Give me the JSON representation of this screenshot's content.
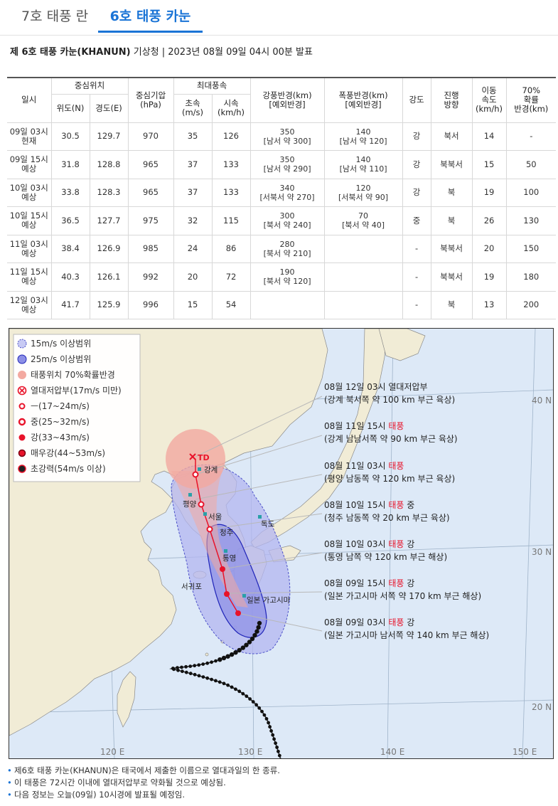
{
  "tabs": [
    {
      "label": "7호 태풍 란"
    },
    {
      "label": "6호 태풍 카눈"
    }
  ],
  "heading": {
    "title": "제 6호 태풍 카눈(KHANUN)",
    "source": " 기상청 | 2023년 08월 09일 04시 00분 발표"
  },
  "table": {
    "h": {
      "time": "일시",
      "center": "중심위치",
      "lat": "위도(N)",
      "lon": "경도(E)",
      "pressure": "중심기압",
      "pressure_unit": "(hPa)",
      "wind": "최대풍속",
      "ms": "초속",
      "ms_unit": "(m/s)",
      "kmh": "시속",
      "kmh_unit": "(km/h)",
      "strong": "강풍반경(km)",
      "strong2": "[예외반경]",
      "storm": "폭풍반경(km)",
      "storm2": "[예외반경]",
      "intensity": "강도",
      "dir1": "진행",
      "dir2": "방향",
      "spd1": "이동",
      "spd2": "속도",
      "spd3": "(km/h)",
      "p1": "70%",
      "p2": "확률",
      "p3": "반경(km)"
    },
    "rows": [
      {
        "t1": "09일 03시",
        "t2": "현재",
        "lat": "30.5",
        "lon": "129.7",
        "hpa": "970",
        "ms": "35",
        "kmh": "126",
        "s1": "350",
        "s2": "[남서 약 300]",
        "st1": "140",
        "st2": "[남서 약 120]",
        "int": "강",
        "dir": "북서",
        "spd": "14",
        "prob": "-"
      },
      {
        "t1": "09일 15시",
        "t2": "예상",
        "lat": "31.8",
        "lon": "128.8",
        "hpa": "965",
        "ms": "37",
        "kmh": "133",
        "s1": "350",
        "s2": "[남서 약 290]",
        "st1": "140",
        "st2": "[남서 약 110]",
        "int": "강",
        "dir": "북북서",
        "spd": "15",
        "prob": "50"
      },
      {
        "t1": "10일 03시",
        "t2": "예상",
        "lat": "33.8",
        "lon": "128.3",
        "hpa": "965",
        "ms": "37",
        "kmh": "133",
        "s1": "340",
        "s2": "[서북서 약 270]",
        "st1": "120",
        "st2": "[서북서 약 90]",
        "int": "강",
        "dir": "북",
        "spd": "19",
        "prob": "100"
      },
      {
        "t1": "10일 15시",
        "t2": "예상",
        "lat": "36.5",
        "lon": "127.7",
        "hpa": "975",
        "ms": "32",
        "kmh": "115",
        "s1": "300",
        "s2": "[북서 약 240]",
        "st1": "70",
        "st2": "[북서 약 40]",
        "int": "중",
        "dir": "북",
        "spd": "26",
        "prob": "130"
      },
      {
        "t1": "11일 03시",
        "t2": "예상",
        "lat": "38.4",
        "lon": "126.9",
        "hpa": "985",
        "ms": "24",
        "kmh": "86",
        "s1": "280",
        "s2": "[북서 약 210]",
        "st1": "",
        "st2": "",
        "int": "-",
        "dir": "북북서",
        "spd": "20",
        "prob": "150"
      },
      {
        "t1": "11일 15시",
        "t2": "예상",
        "lat": "40.3",
        "lon": "126.1",
        "hpa": "992",
        "ms": "20",
        "kmh": "72",
        "s1": "190",
        "s2": "[북서 약 120]",
        "st1": "",
        "st2": "",
        "int": "-",
        "dir": "북북서",
        "spd": "19",
        "prob": "180"
      },
      {
        "t1": "12일 03시",
        "t2": "예상",
        "lat": "41.7",
        "lon": "125.9",
        "hpa": "996",
        "ms": "15",
        "kmh": "54",
        "s1": "",
        "s2": "",
        "st1": "",
        "st2": "",
        "int": "-",
        "dir": "북",
        "spd": "13",
        "prob": "200"
      }
    ]
  },
  "map": {
    "legend": [
      "15m/s 이상범위",
      "25m/s 이상범위",
      "태풍위치 70%확률반경",
      "열대저압부(17m/s 미만)",
      "ㅡ(17~24m/s)",
      "중(25~32m/s)",
      "강(33~43m/s)",
      "매우강(44~53m/s)",
      "초강력(54m/s 이상)"
    ],
    "lat_labels": [
      "40 N",
      "30 N",
      "20 N"
    ],
    "lon_labels": [
      "120 E",
      "130 E",
      "140 E",
      "150 E"
    ],
    "places": {
      "gangye": "강계",
      "pyongyang": "평양",
      "seoul": "서울",
      "cheongju": "청주",
      "tongyeong": "통영",
      "dokdo": "독도",
      "seogwipo": "서귀포",
      "kagoshima": "일본 가고시마"
    },
    "td_label": "TD",
    "callouts": [
      {
        "l1a": "08월 12일 03시 열대저압부",
        "l1b": "",
        "l1c": "",
        "l2": "(강계 북서쪽 약 100 km 부근 육상)"
      },
      {
        "l1a": "08월 11일 15시 ",
        "l1b": "태풍",
        "l1c": "",
        "l2": "(강계 남남서쪽 약 90 km 부근 육상)"
      },
      {
        "l1a": "08월 11일 03시 ",
        "l1b": "태풍",
        "l1c": "",
        "l2": "(평양 남동쪽 약 120 km 부근 육상)"
      },
      {
        "l1a": "08월 10일 15시 ",
        "l1b": "태풍",
        "l1c": " 중",
        "l2": "(청주 남동쪽 약 20 km 부근 육상)"
      },
      {
        "l1a": "08월 10일 03시 ",
        "l1b": "태풍",
        "l1c": " 강",
        "l2": "(통영 남쪽 약 120 km 부근 해상)"
      },
      {
        "l1a": "08월 09일 15시 ",
        "l1b": "태풍",
        "l1c": " 강",
        "l2": "(일본 가고시마 서쪽 약 170 km 부근 해상)"
      },
      {
        "l1a": "08월 09일 03시 ",
        "l1b": "태풍",
        "l1c": " 강",
        "l2": "(일본 가고시마 남서쪽 약 140 km 부근 해상)"
      }
    ],
    "colors": {
      "sea": "#dde9f7",
      "land": "#f1ecd6",
      "r15": "#b3b6f0",
      "r25": "#8c8fe6",
      "prob": "#f3a9a0",
      "typhoon": "#e8132a"
    }
  },
  "notes": [
    "제6호 태풍 카눈(KHANUN)은 태국에서 제출한 이름으로 열대과일의 한 종류.",
    "이 태풍은 72시간 이내에 열대저압부로 약화될 것으로 예상됨.",
    "다음 정보는 오늘(09일) 10시경에 발표될 예정임."
  ]
}
